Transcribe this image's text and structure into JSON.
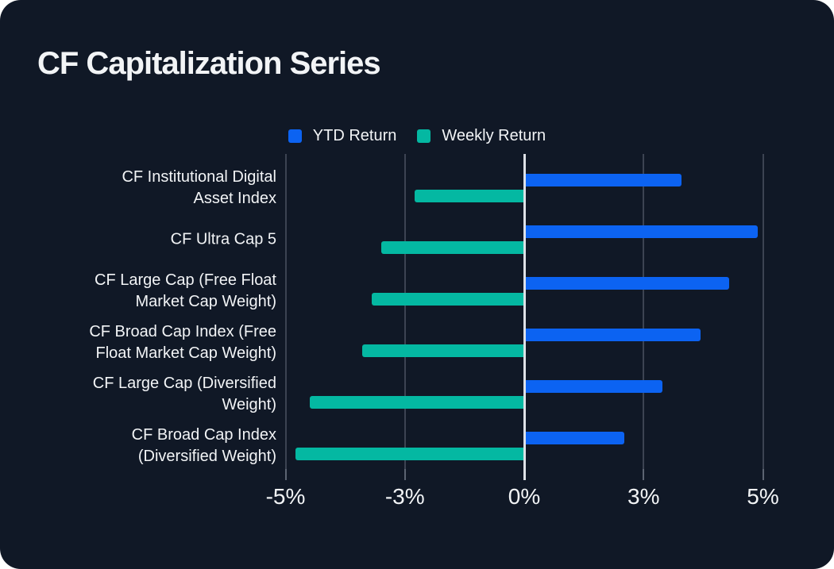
{
  "title": "CF Capitalization Series",
  "colors": {
    "background": "#101826",
    "text": "#f2f4f6",
    "ytd_blue": "#0c63f2",
    "weekly_teal": "#04b8a2",
    "gridline": "#3c4352",
    "zero_line": "#dde1e6",
    "tick_mark": "#5c6472"
  },
  "legend": {
    "items": [
      {
        "label": "YTD Return",
        "color_key": "ytd_blue"
      },
      {
        "label": "Weekly Return",
        "color_key": "weekly_teal"
      }
    ]
  },
  "chart_data": {
    "type": "bar",
    "orientation": "horizontal",
    "title": "CF Capitalization Series",
    "grid": "vertical",
    "legend_position": "top",
    "xlim": [
      -5,
      5
    ],
    "x_ticks": [
      {
        "value": -5,
        "label": "-5%"
      },
      {
        "value": -2.5,
        "label": "-3%"
      },
      {
        "value": 0,
        "label": "0%"
      },
      {
        "value": 2.5,
        "label": "3%"
      },
      {
        "value": 5,
        "label": "5%"
      }
    ],
    "categories": [
      "CF Institutional Digital Asset Index",
      "CF Ultra Cap 5",
      "CF Large Cap (Free Float Market Cap Weight)",
      "CF Broad Cap Index (Free Float Market Cap Weight)",
      "CF Large Cap (Diversified Weight)",
      "CF Broad Cap Index (Diversified Weight)"
    ],
    "category_lines": [
      [
        "CF Institutional Digital",
        "Asset Index"
      ],
      [
        "CF Ultra Cap 5"
      ],
      [
        "CF Large Cap (Free Float",
        "Market Cap Weight)"
      ],
      [
        "CF Broad Cap Index (Free",
        "Float Market Cap Weight)"
      ],
      [
        "CF Large Cap (Diversified",
        "Weight)"
      ],
      [
        "CF Broad Cap Index",
        "(Diversified Weight)"
      ]
    ],
    "series": [
      {
        "name": "YTD Return",
        "unit": "%",
        "values": [
          3.3,
          4.9,
          4.3,
          3.7,
          2.9,
          2.1
        ]
      },
      {
        "name": "Weekly Return",
        "unit": "%",
        "values": [
          -2.3,
          -3.0,
          -3.2,
          -3.4,
          -4.5,
          -4.8
        ]
      }
    ]
  }
}
